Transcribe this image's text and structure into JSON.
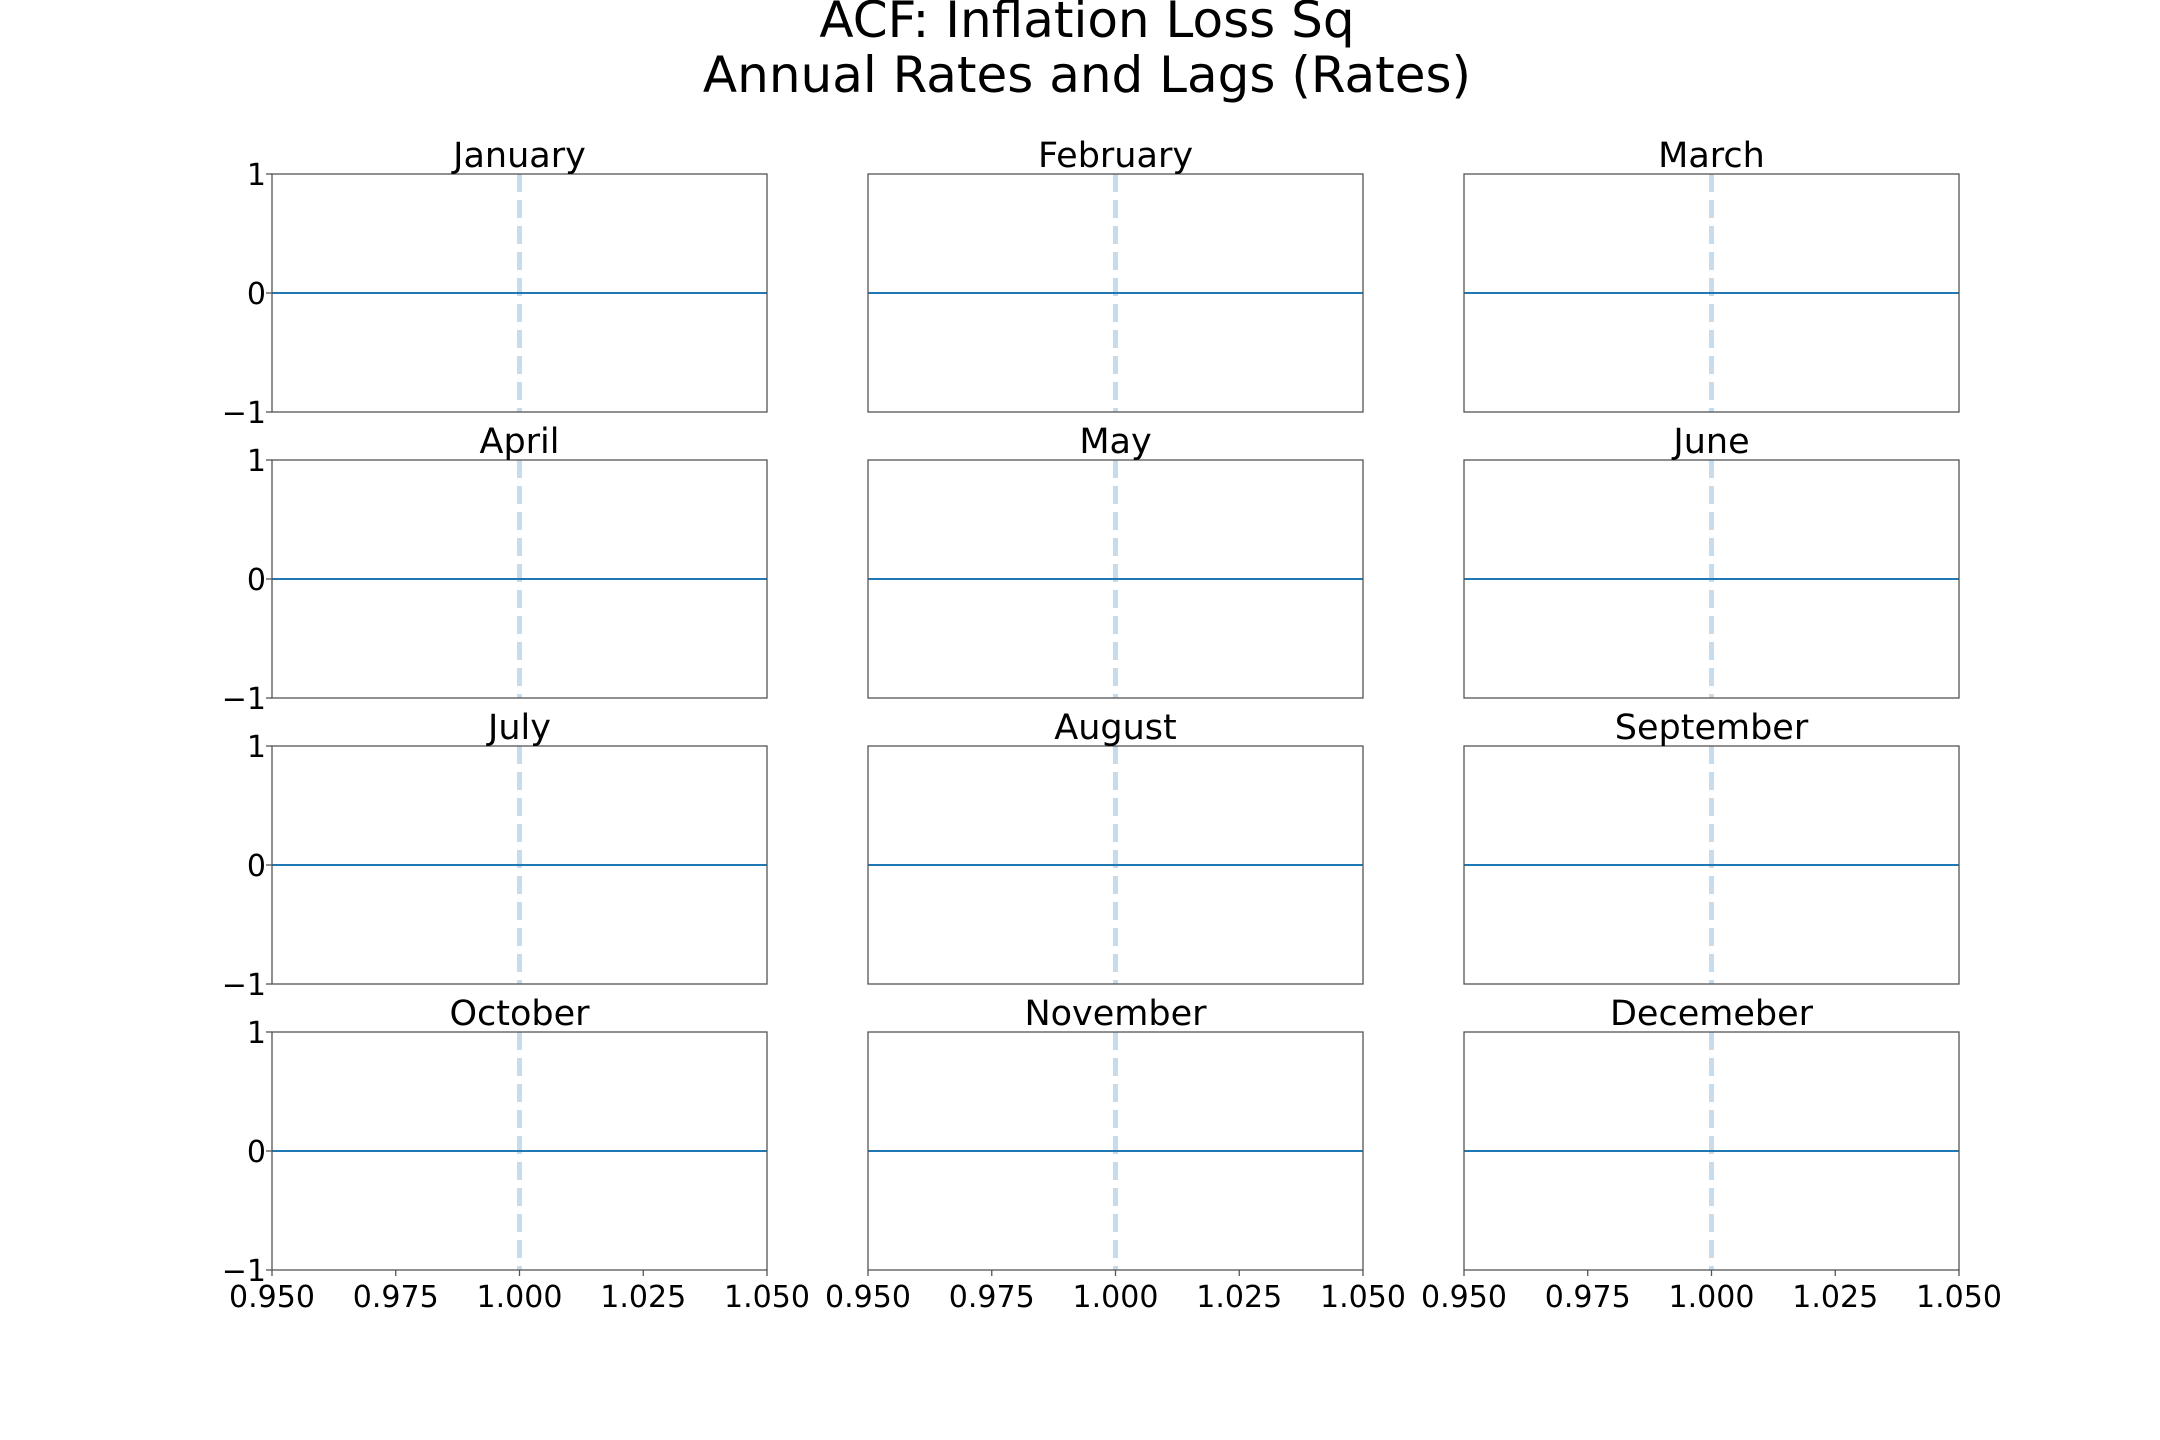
{
  "figure": {
    "title_lines": [
      "ACF: Inflation Loss Sq",
      "Annual Rates and Lags (Rates)"
    ]
  },
  "colors": {
    "zero_line": "#1f77b4",
    "lag_marker": "#c6dcec",
    "frame": "#555555",
    "text": "#000000"
  },
  "chart_data": {
    "type": "line",
    "grid": false,
    "layout": "4x3 grid of panels, shared x-axis tick labels on bottom row, shared y-axis tick labels on left column",
    "xlim": [
      0.95,
      1.05
    ],
    "ylim": [
      -1,
      1
    ],
    "x_ticks": [
      "0.950",
      "0.975",
      "1.000",
      "1.025",
      "1.050"
    ],
    "y_ticks": [
      "1",
      "0",
      "−1"
    ],
    "panels": [
      {
        "title": "January",
        "zero_line_y": 0,
        "lag_line_x": 1.0
      },
      {
        "title": "February",
        "zero_line_y": 0,
        "lag_line_x": 1.0
      },
      {
        "title": "March",
        "zero_line_y": 0,
        "lag_line_x": 1.0
      },
      {
        "title": "April",
        "zero_line_y": 0,
        "lag_line_x": 1.0
      },
      {
        "title": "May",
        "zero_line_y": 0,
        "lag_line_x": 1.0
      },
      {
        "title": "June",
        "zero_line_y": 0,
        "lag_line_x": 1.0
      },
      {
        "title": "July",
        "zero_line_y": 0,
        "lag_line_x": 1.0
      },
      {
        "title": "August",
        "zero_line_y": 0,
        "lag_line_x": 1.0
      },
      {
        "title": "September",
        "zero_line_y": 0,
        "lag_line_x": 1.0
      },
      {
        "title": "October",
        "zero_line_y": 0,
        "lag_line_x": 1.0
      },
      {
        "title": "November",
        "zero_line_y": 0,
        "lag_line_x": 1.0
      },
      {
        "title": "Decemeber",
        "zero_line_y": 0,
        "lag_line_x": 1.0
      }
    ]
  }
}
